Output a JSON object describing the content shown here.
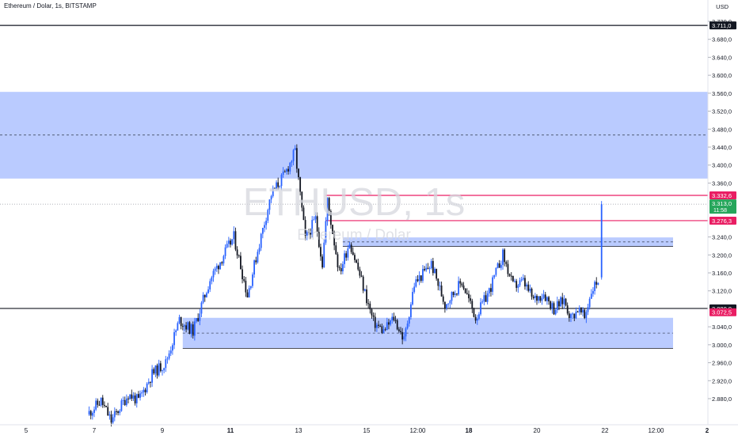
{
  "header": {
    "title": "Ethereum / Dolar, 1s, BITSTAMP",
    "currency": "USD"
  },
  "watermark": {
    "symbol": "ETHUSD, 1s",
    "name": "Ethereum / Dolar"
  },
  "chart_data": {
    "type": "candlestick",
    "title": "Ethereum / Dolar, 1s, BITSTAMP",
    "ylim": [
      2850,
      3735
    ],
    "y_ticks": [
      {
        "value": 3720,
        "label": "3.720,0"
      },
      {
        "value": 3680,
        "label": "3.680,0"
      },
      {
        "value": 3640,
        "label": "3.640,0"
      },
      {
        "value": 3600,
        "label": "3.600,0"
      },
      {
        "value": 3560,
        "label": "3.560,0"
      },
      {
        "value": 3520,
        "label": "3.520,0"
      },
      {
        "value": 3480,
        "label": "3.480,0"
      },
      {
        "value": 3440,
        "label": "3.440,0"
      },
      {
        "value": 3400,
        "label": "3.400,0"
      },
      {
        "value": 3360,
        "label": "3.360,0"
      },
      {
        "value": 3240,
        "label": "3.240,0"
      },
      {
        "value": 3200,
        "label": "3.200,0"
      },
      {
        "value": 3160,
        "label": "3.160,0"
      },
      {
        "value": 3120,
        "label": "3.120,0"
      },
      {
        "value": 3040,
        "label": "3.040,0"
      },
      {
        "value": 3000,
        "label": "3.000,0"
      },
      {
        "value": 2960,
        "label": "2.960,0"
      },
      {
        "value": 2920,
        "label": "2.920,0"
      },
      {
        "value": 2880,
        "label": "2.880,0"
      }
    ],
    "x_ticks": [
      {
        "day": 5,
        "label": "5",
        "bold": false
      },
      {
        "day": 7,
        "label": "7",
        "bold": false
      },
      {
        "day": 9,
        "label": "9",
        "bold": false
      },
      {
        "day": 11,
        "label": "11",
        "bold": true
      },
      {
        "day": 13,
        "label": "13",
        "bold": false
      },
      {
        "day": 15,
        "label": "15",
        "bold": false
      },
      {
        "day": 16.5,
        "label": "12:00",
        "bold": false
      },
      {
        "day": 18,
        "label": "18",
        "bold": true
      },
      {
        "day": 20,
        "label": "20",
        "bold": false
      },
      {
        "day": 22,
        "label": "22",
        "bold": false
      },
      {
        "day": 23.5,
        "label": "12:00",
        "bold": false
      },
      {
        "day": 25,
        "label": "2",
        "bold": true
      }
    ],
    "price_markers": [
      {
        "value": 3711,
        "label": "3.711,0",
        "bg": "#131722",
        "fg": "#ffffff"
      },
      {
        "value": 3332.6,
        "label": "3.332,6",
        "bg": "#e91e63",
        "fg": "#ffffff"
      },
      {
        "value": 3276.3,
        "label": "3.276,3",
        "bg": "#e91e63",
        "fg": "#ffffff"
      },
      {
        "value": 3080.9,
        "label": "3.080,9",
        "bg": "#131722",
        "fg": "#ffffff"
      },
      {
        "value": 3072.5,
        "label": "3.072,5",
        "bg": "#e91e63",
        "fg": "#ffffff"
      }
    ],
    "current_price": {
      "value": 3313.0,
      "label": "3.313,0",
      "countdown": "11:58",
      "bg": "#26a65b"
    },
    "zones": [
      {
        "from_day": null,
        "to_day": null,
        "top": 3563,
        "bottom": 3370,
        "mid": 3467
      },
      {
        "from_day": 14.3,
        "to_day": 24.0,
        "top": 3239,
        "bottom": 3219,
        "mid": 3229
      },
      {
        "from_day": 9.6,
        "to_day": 24.0,
        "top": 3060,
        "bottom": 2992,
        "mid": 3026
      }
    ],
    "horizontal_lines": [
      {
        "value": 3711,
        "color": "#131722",
        "from_day": null,
        "style": "solid"
      },
      {
        "value": 3080.9,
        "color": "#131722",
        "from_day": null,
        "style": "solid"
      },
      {
        "value": 3332.6,
        "color": "#e91e63",
        "from_day": 13.8,
        "style": "solid"
      },
      {
        "value": 3276.3,
        "color": "#e91e63",
        "from_day": 13.8,
        "style": "solid"
      },
      {
        "value": 3313.0,
        "color": "#9598a1",
        "from_day": null,
        "style": "dotted"
      }
    ],
    "colors": {
      "up": "#2962ff",
      "down": "#131722",
      "zone": "#aec2ff"
    },
    "waypoints": [
      [
        6.8,
        2845
      ],
      [
        7.2,
        2875
      ],
      [
        7.5,
        2830
      ],
      [
        8.0,
        2890
      ],
      [
        8.3,
        2875
      ],
      [
        8.7,
        2935
      ],
      [
        9.1,
        2960
      ],
      [
        9.5,
        3055
      ],
      [
        9.9,
        3030
      ],
      [
        10.4,
        3145
      ],
      [
        10.8,
        3200
      ],
      [
        11.1,
        3240
      ],
      [
        11.5,
        3110
      ],
      [
        11.8,
        3210
      ],
      [
        12.2,
        3335
      ],
      [
        12.6,
        3380
      ],
      [
        12.9,
        3430
      ],
      [
        13.2,
        3235
      ],
      [
        13.5,
        3280
      ],
      [
        13.7,
        3180
      ],
      [
        13.85,
        3320
      ],
      [
        14.2,
        3160
      ],
      [
        14.5,
        3230
      ],
      [
        14.8,
        3155
      ],
      [
        15.2,
        3050
      ],
      [
        15.5,
        3030
      ],
      [
        15.8,
        3060
      ],
      [
        16.1,
        3010
      ],
      [
        16.4,
        3135
      ],
      [
        16.9,
        3180
      ],
      [
        17.3,
        3090
      ],
      [
        17.8,
        3140
      ],
      [
        18.2,
        3060
      ],
      [
        18.6,
        3120
      ],
      [
        19.0,
        3200
      ],
      [
        19.3,
        3130
      ],
      [
        19.6,
        3140
      ],
      [
        19.9,
        3100
      ],
      [
        20.2,
        3115
      ],
      [
        20.5,
        3080
      ],
      [
        20.8,
        3100
      ],
      [
        21.0,
        3060
      ],
      [
        21.2,
        3080
      ],
      [
        21.4,
        3060
      ],
      [
        21.6,
        3120
      ],
      [
        21.8,
        3145
      ]
    ],
    "last_bar": {
      "day": 21.9,
      "open": 3150,
      "high": 3320,
      "low": 3145,
      "close": 3313
    }
  }
}
